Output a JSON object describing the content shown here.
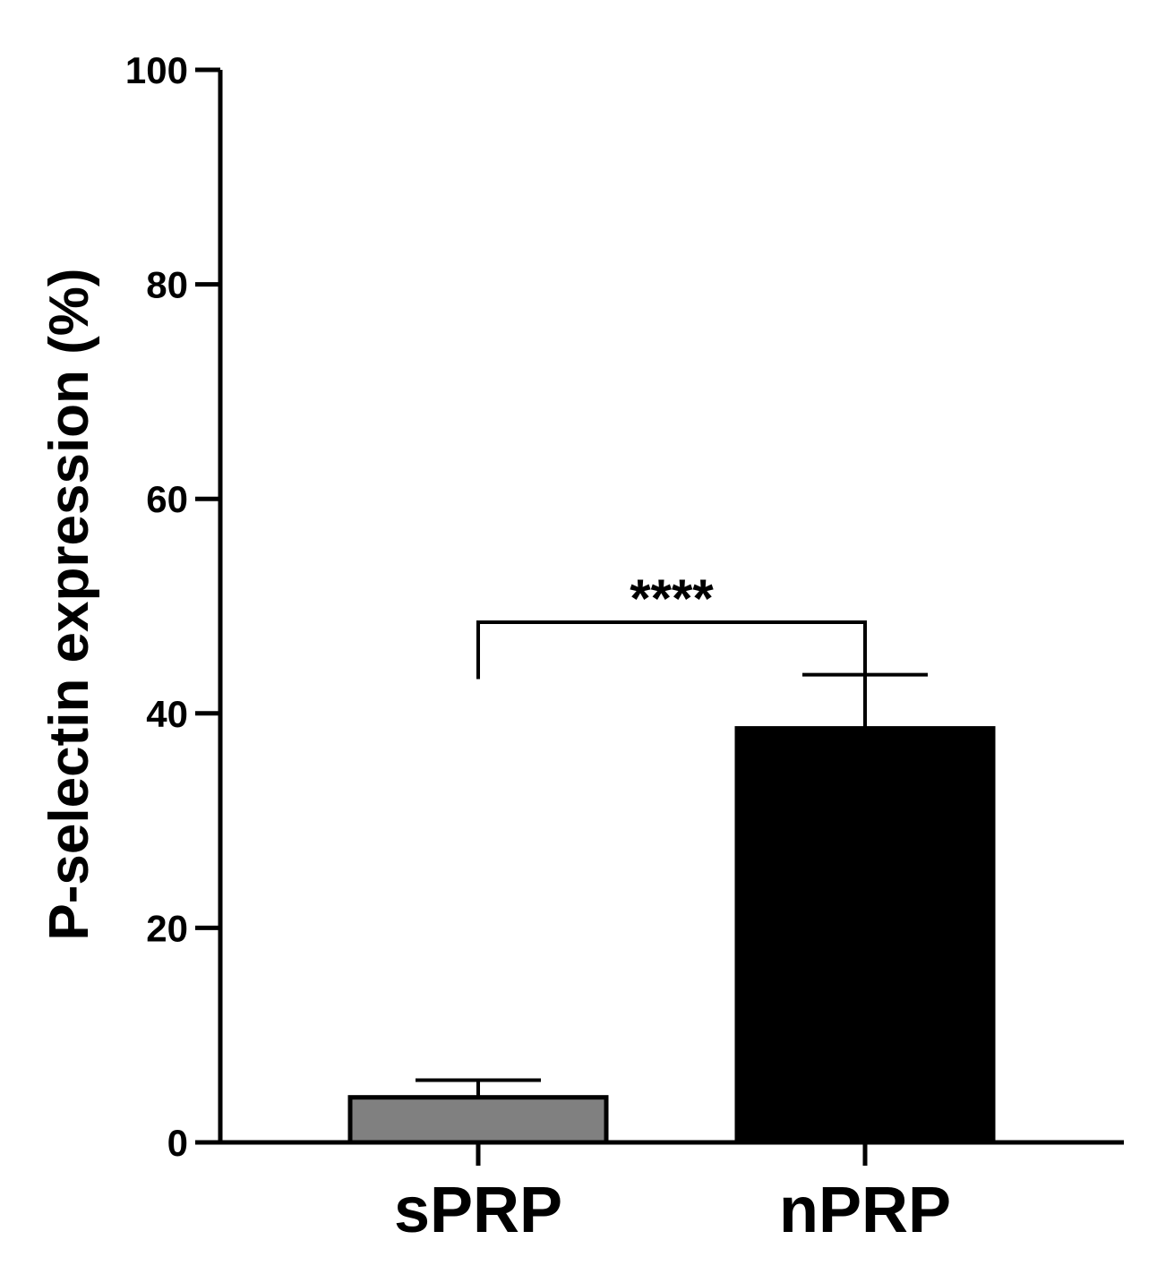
{
  "chart_data": {
    "type": "bar",
    "categories": [
      "sPRP",
      "nPRP"
    ],
    "values": [
      4.2,
      38.6
    ],
    "error_upper": [
      5.8,
      43.6
    ],
    "bar_colors": [
      "#808080",
      "#000000"
    ],
    "ylabel": "P-selectin expression (%)",
    "xlabel": "",
    "ylim": [
      0,
      100
    ],
    "yticks": [
      0,
      20,
      40,
      60,
      80,
      100
    ],
    "grid": false,
    "legend": "none",
    "significance": {
      "between": [
        "sPRP",
        "nPRP"
      ],
      "label": "****",
      "bracket_y": 48.5
    }
  }
}
